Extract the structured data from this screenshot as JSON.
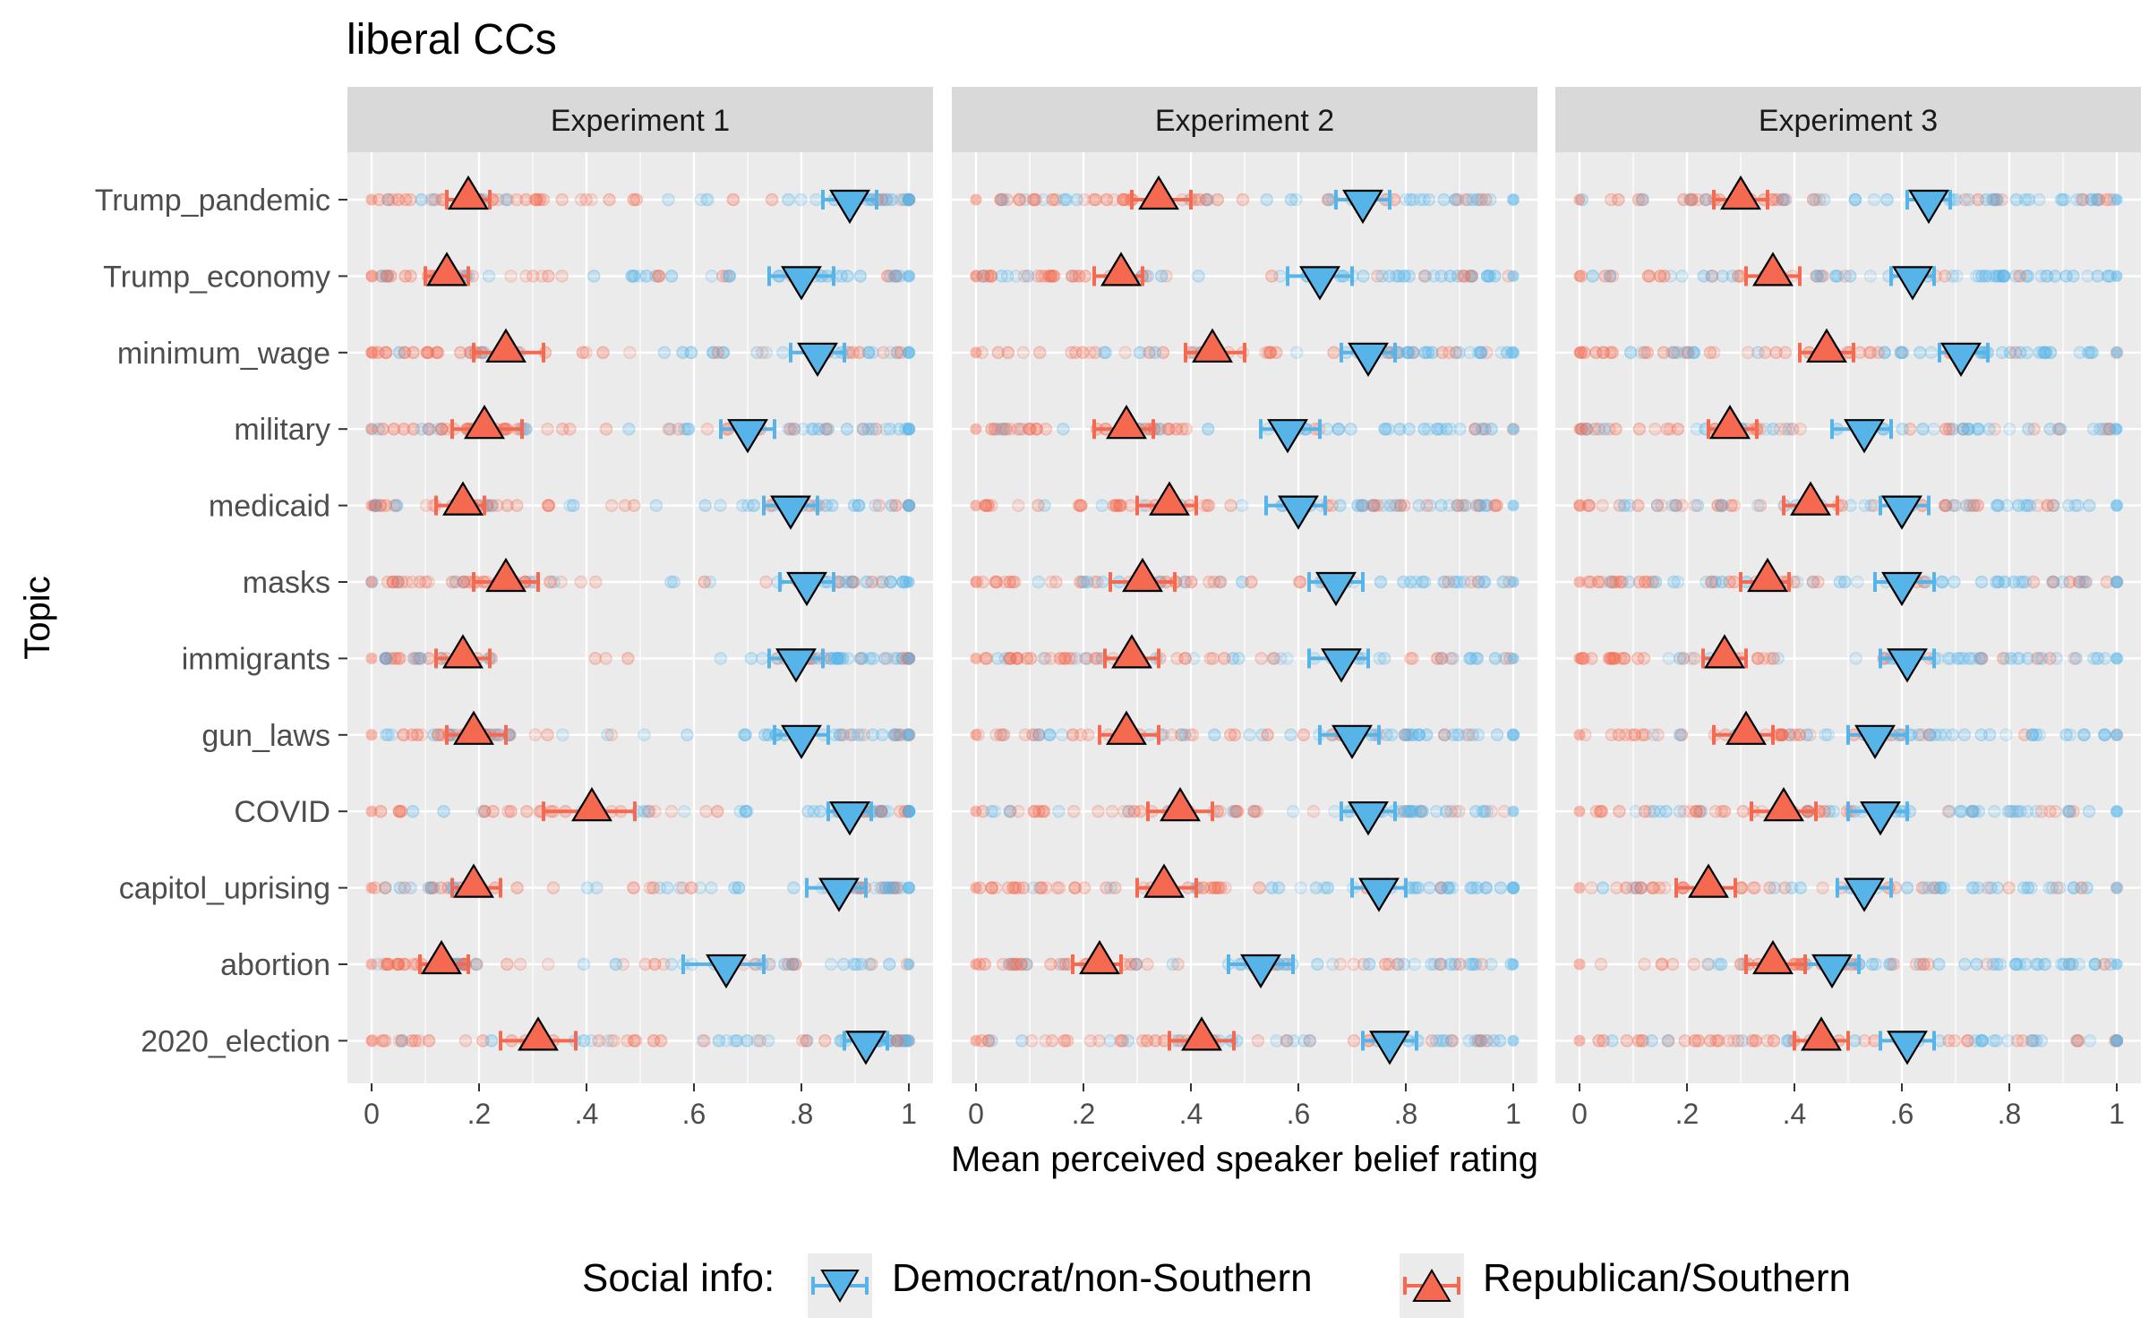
{
  "chart_data": {
    "type": "scatter",
    "title": "liberal CCs",
    "xlabel": "Mean perceived speaker belief rating",
    "ylabel": "Topic",
    "xlim": [
      0,
      1
    ],
    "x_ticks": [
      "0",
      ".2",
      ".4",
      ".6",
      ".8",
      "1"
    ],
    "x_tick_values": [
      0,
      0.2,
      0.4,
      0.6,
      0.8,
      1
    ],
    "grid": true,
    "legend_title": "Social info:",
    "legend_position": "bottom",
    "categories": [
      "Trump_pandemic",
      "Trump_economy",
      "minimum_wage",
      "military",
      "medicaid",
      "masks",
      "immigrants",
      "gun_laws",
      "COVID",
      "capitol_uprising",
      "abortion",
      "2020_election"
    ],
    "series_style": [
      {
        "name": "Democrat/non-Southern",
        "color": "#56B4E9",
        "marker": "triangle-down"
      },
      {
        "name": "Republican/Southern",
        "color": "#F4694F",
        "marker": "triangle-up"
      }
    ],
    "panels": [
      {
        "label": "Experiment 1",
        "dem": [
          {
            "mean": 0.89,
            "lo": 0.84,
            "hi": 0.94
          },
          {
            "mean": 0.8,
            "lo": 0.74,
            "hi": 0.86
          },
          {
            "mean": 0.83,
            "lo": 0.78,
            "hi": 0.88
          },
          {
            "mean": 0.7,
            "lo": 0.65,
            "hi": 0.75
          },
          {
            "mean": 0.78,
            "lo": 0.73,
            "hi": 0.83
          },
          {
            "mean": 0.81,
            "lo": 0.76,
            "hi": 0.86
          },
          {
            "mean": 0.79,
            "lo": 0.74,
            "hi": 0.84
          },
          {
            "mean": 0.8,
            "lo": 0.75,
            "hi": 0.85
          },
          {
            "mean": 0.89,
            "lo": 0.85,
            "hi": 0.93
          },
          {
            "mean": 0.87,
            "lo": 0.81,
            "hi": 0.92
          },
          {
            "mean": 0.66,
            "lo": 0.58,
            "hi": 0.73
          },
          {
            "mean": 0.92,
            "lo": 0.88,
            "hi": 0.96
          }
        ],
        "rep": [
          {
            "mean": 0.18,
            "lo": 0.14,
            "hi": 0.22
          },
          {
            "mean": 0.14,
            "lo": 0.1,
            "hi": 0.18
          },
          {
            "mean": 0.25,
            "lo": 0.19,
            "hi": 0.32
          },
          {
            "mean": 0.21,
            "lo": 0.15,
            "hi": 0.28
          },
          {
            "mean": 0.17,
            "lo": 0.12,
            "hi": 0.21
          },
          {
            "mean": 0.25,
            "lo": 0.19,
            "hi": 0.31
          },
          {
            "mean": 0.17,
            "lo": 0.12,
            "hi": 0.22
          },
          {
            "mean": 0.19,
            "lo": 0.14,
            "hi": 0.25
          },
          {
            "mean": 0.41,
            "lo": 0.32,
            "hi": 0.49
          },
          {
            "mean": 0.19,
            "lo": 0.15,
            "hi": 0.24
          },
          {
            "mean": 0.13,
            "lo": 0.09,
            "hi": 0.18
          },
          {
            "mean": 0.31,
            "lo": 0.24,
            "hi": 0.38
          }
        ]
      },
      {
        "label": "Experiment 2",
        "dem": [
          {
            "mean": 0.72,
            "lo": 0.67,
            "hi": 0.77
          },
          {
            "mean": 0.64,
            "lo": 0.58,
            "hi": 0.7
          },
          {
            "mean": 0.73,
            "lo": 0.68,
            "hi": 0.78
          },
          {
            "mean": 0.58,
            "lo": 0.53,
            "hi": 0.64
          },
          {
            "mean": 0.6,
            "lo": 0.54,
            "hi": 0.65
          },
          {
            "mean": 0.67,
            "lo": 0.62,
            "hi": 0.72
          },
          {
            "mean": 0.68,
            "lo": 0.62,
            "hi": 0.73
          },
          {
            "mean": 0.7,
            "lo": 0.64,
            "hi": 0.75
          },
          {
            "mean": 0.73,
            "lo": 0.68,
            "hi": 0.78
          },
          {
            "mean": 0.75,
            "lo": 0.7,
            "hi": 0.8
          },
          {
            "mean": 0.53,
            "lo": 0.47,
            "hi": 0.59
          },
          {
            "mean": 0.77,
            "lo": 0.72,
            "hi": 0.82
          }
        ],
        "rep": [
          {
            "mean": 0.34,
            "lo": 0.29,
            "hi": 0.4
          },
          {
            "mean": 0.27,
            "lo": 0.22,
            "hi": 0.31
          },
          {
            "mean": 0.44,
            "lo": 0.39,
            "hi": 0.5
          },
          {
            "mean": 0.28,
            "lo": 0.22,
            "hi": 0.33
          },
          {
            "mean": 0.36,
            "lo": 0.3,
            "hi": 0.41
          },
          {
            "mean": 0.31,
            "lo": 0.25,
            "hi": 0.37
          },
          {
            "mean": 0.29,
            "lo": 0.24,
            "hi": 0.34
          },
          {
            "mean": 0.28,
            "lo": 0.23,
            "hi": 0.34
          },
          {
            "mean": 0.38,
            "lo": 0.32,
            "hi": 0.44
          },
          {
            "mean": 0.35,
            "lo": 0.3,
            "hi": 0.41
          },
          {
            "mean": 0.23,
            "lo": 0.18,
            "hi": 0.27
          },
          {
            "mean": 0.42,
            "lo": 0.36,
            "hi": 0.48
          }
        ]
      },
      {
        "label": "Experiment 3",
        "dem": [
          {
            "mean": 0.65,
            "lo": 0.61,
            "hi": 0.69
          },
          {
            "mean": 0.62,
            "lo": 0.58,
            "hi": 0.66
          },
          {
            "mean": 0.71,
            "lo": 0.67,
            "hi": 0.76
          },
          {
            "mean": 0.53,
            "lo": 0.47,
            "hi": 0.58
          },
          {
            "mean": 0.6,
            "lo": 0.56,
            "hi": 0.65
          },
          {
            "mean": 0.6,
            "lo": 0.55,
            "hi": 0.66
          },
          {
            "mean": 0.61,
            "lo": 0.56,
            "hi": 0.66
          },
          {
            "mean": 0.55,
            "lo": 0.5,
            "hi": 0.61
          },
          {
            "mean": 0.56,
            "lo": 0.5,
            "hi": 0.61
          },
          {
            "mean": 0.53,
            "lo": 0.48,
            "hi": 0.58
          },
          {
            "mean": 0.47,
            "lo": 0.42,
            "hi": 0.52
          },
          {
            "mean": 0.61,
            "lo": 0.56,
            "hi": 0.66
          }
        ],
        "rep": [
          {
            "mean": 0.3,
            "lo": 0.25,
            "hi": 0.35
          },
          {
            "mean": 0.36,
            "lo": 0.31,
            "hi": 0.41
          },
          {
            "mean": 0.46,
            "lo": 0.41,
            "hi": 0.51
          },
          {
            "mean": 0.28,
            "lo": 0.24,
            "hi": 0.33
          },
          {
            "mean": 0.43,
            "lo": 0.38,
            "hi": 0.48
          },
          {
            "mean": 0.35,
            "lo": 0.3,
            "hi": 0.39
          },
          {
            "mean": 0.27,
            "lo": 0.23,
            "hi": 0.31
          },
          {
            "mean": 0.31,
            "lo": 0.25,
            "hi": 0.36
          },
          {
            "mean": 0.38,
            "lo": 0.32,
            "hi": 0.44
          },
          {
            "mean": 0.24,
            "lo": 0.18,
            "hi": 0.29
          },
          {
            "mean": 0.36,
            "lo": 0.31,
            "hi": 0.42
          },
          {
            "mean": 0.45,
            "lo": 0.4,
            "hi": 0.5
          }
        ]
      }
    ]
  }
}
